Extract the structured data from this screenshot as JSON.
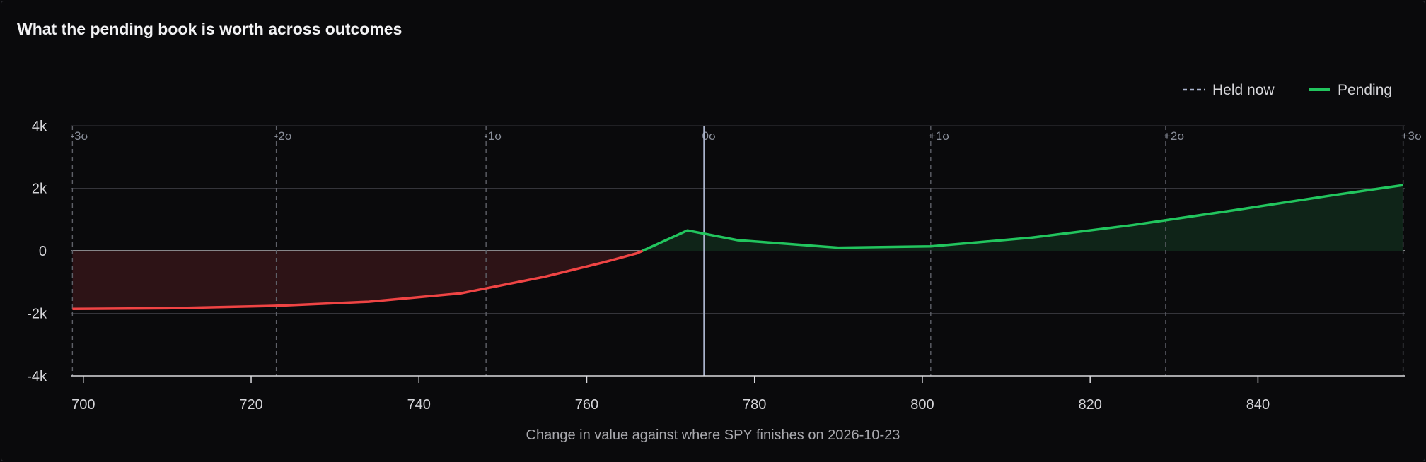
{
  "chart_data": {
    "type": "area",
    "title": "What the pending book is worth across outcomes",
    "xlabel": "Change in value against where SPY finishes on 2026-10-23",
    "ylabel": "",
    "xlim": [
      698.5,
      857.5
    ],
    "ylim": [
      -4000,
      4000
    ],
    "x_ticks": [
      700,
      720,
      740,
      760,
      780,
      800,
      820,
      840
    ],
    "y_ticks": [
      4000,
      2000,
      0,
      -2000,
      -4000
    ],
    "y_tick_labels": [
      "4k",
      "2k",
      "0",
      "-2k",
      "-4k"
    ],
    "grid": true,
    "legend_position": "top-right",
    "legend": [
      {
        "label": "Held now",
        "style": "dashed"
      },
      {
        "label": "Pending",
        "style": "solid"
      }
    ],
    "held_now_x": 774,
    "sigma_lines": [
      {
        "label": "-3σ",
        "x": 698.7
      },
      {
        "label": "-2σ",
        "x": 723
      },
      {
        "label": "-1σ",
        "x": 748
      },
      {
        "label": "0σ",
        "x": 774
      },
      {
        "label": "+1σ",
        "x": 801
      },
      {
        "label": "+2σ",
        "x": 829
      },
      {
        "label": "+3σ",
        "x": 857.3
      }
    ],
    "series": [
      {
        "name": "Pending",
        "x": [
          698.7,
          710,
          723,
          734,
          745,
          755,
          762,
          766,
          772,
          778,
          790,
          801,
          813,
          825,
          837,
          849,
          857.3
        ],
        "values": [
          -1860,
          -1840,
          -1760,
          -1630,
          -1360,
          -830,
          -370,
          -80,
          650,
          340,
          100,
          140,
          420,
          820,
          1290,
          1780,
          2100
        ]
      }
    ],
    "colors": {
      "positive": "#22c55e",
      "negative": "#ef4444",
      "positive_fill": "#0f2418",
      "negative_fill": "#2d1316",
      "held_now": "#aab4cc"
    }
  }
}
